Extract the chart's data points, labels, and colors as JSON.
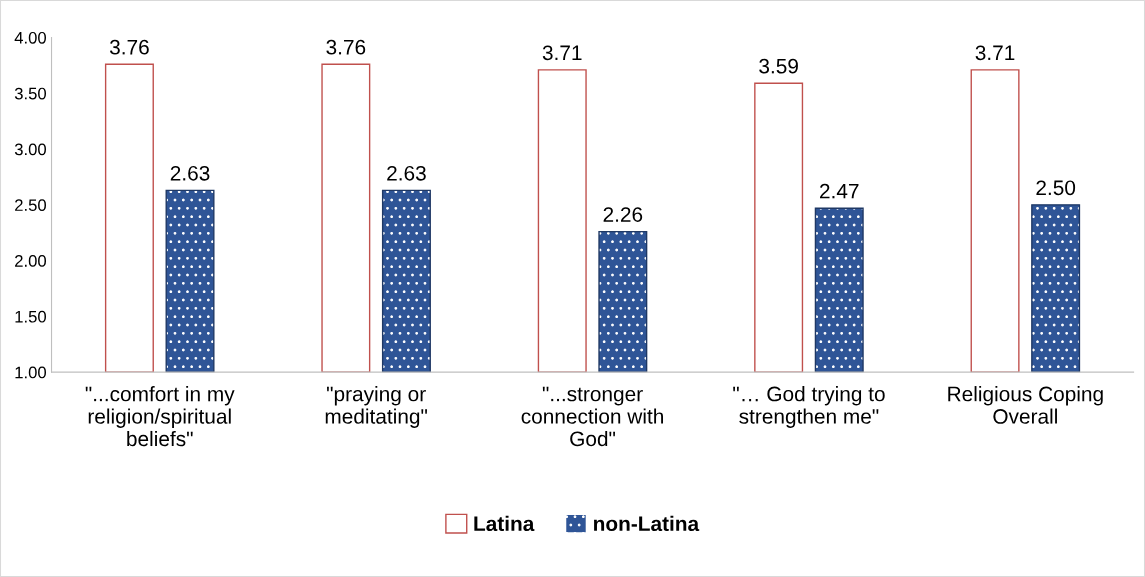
{
  "chart_data": {
    "type": "bar",
    "categories": [
      "\"...comfort in my\nreligion/spiritual\nbeliefs\"",
      "\"praying or\nmeditating\"",
      "\"...stronger\nconnection with\nGod\"",
      "\"… God trying to\nstrengthen me\"",
      "Religious Coping\nOverall"
    ],
    "series": [
      {
        "name": "Latina",
        "color": "#c0504d",
        "values": [
          3.76,
          3.76,
          3.71,
          3.59,
          3.71
        ],
        "value_labels": [
          "3.76",
          "3.76",
          "3.71",
          "3.59",
          "3.71"
        ]
      },
      {
        "name": "non-Latina",
        "color": "#2f5597",
        "values": [
          2.63,
          2.63,
          2.26,
          2.47,
          2.5
        ],
        "value_labels": [
          "2.63",
          "2.63",
          "2.26",
          "2.47",
          "2.50"
        ]
      }
    ],
    "ylim": [
      1,
      4
    ],
    "yticks": [
      {
        "value": 1,
        "label": "1.00"
      },
      {
        "value": 1.5,
        "label": "1.50"
      },
      {
        "value": 2,
        "label": "2.00"
      },
      {
        "value": 2.5,
        "label": "2.50"
      },
      {
        "value": 3,
        "label": "3.00"
      },
      {
        "value": 3.5,
        "label": "3.50"
      },
      {
        "value": 4,
        "label": "4.00"
      }
    ],
    "grid": false,
    "legend": "bottom"
  }
}
